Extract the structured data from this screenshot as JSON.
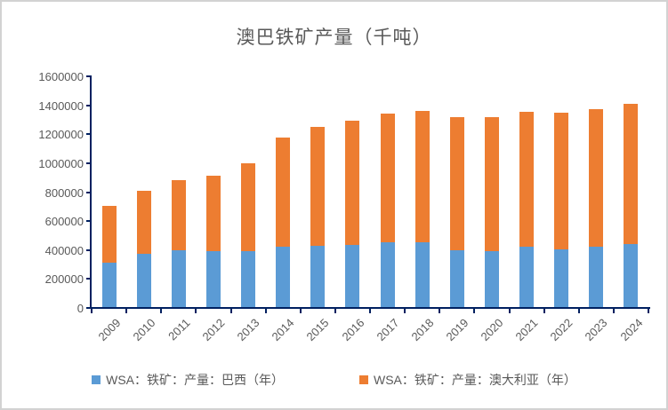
{
  "window": {
    "background": "#ffffff",
    "border_color": "#d2d2d2"
  },
  "chart_data": {
    "type": "bar",
    "stacked": true,
    "title": "澳巴铁矿产量（千吨）",
    "categories": [
      "2009",
      "2010",
      "2011",
      "2012",
      "2013",
      "2014",
      "2015",
      "2016",
      "2017",
      "2018",
      "2019",
      "2020",
      "2021",
      "2022",
      "2023",
      "2024"
    ],
    "series": [
      {
        "name": "WSA：铁矿：产量：巴西（年）",
        "color": "#5B9BD5",
        "values": [
          305000,
          367000,
          395000,
          384000,
          389000,
          414000,
          425000,
          432000,
          450000,
          445000,
          392000,
          387000,
          420000,
          399000,
          414000,
          437000
        ]
      },
      {
        "name": "WSA：铁矿：产量：澳大利亚（年）",
        "color": "#ED7D31",
        "values": [
          396000,
          437000,
          484000,
          521000,
          607000,
          760000,
          818000,
          858000,
          888000,
          907000,
          923000,
          923000,
          928000,
          944000,
          956000,
          970000
        ]
      }
    ],
    "ylim": [
      0,
      1600000
    ],
    "ytick_step": 200000,
    "yticks": [
      "0",
      "200000",
      "400000",
      "600000",
      "800000",
      "1000000",
      "1200000",
      "1400000",
      "1600000"
    ],
    "grid": false,
    "legend_position": "bottom",
    "axis_color": "#002060",
    "text_color": "#595959",
    "xlabel_rotation_deg": -45
  }
}
